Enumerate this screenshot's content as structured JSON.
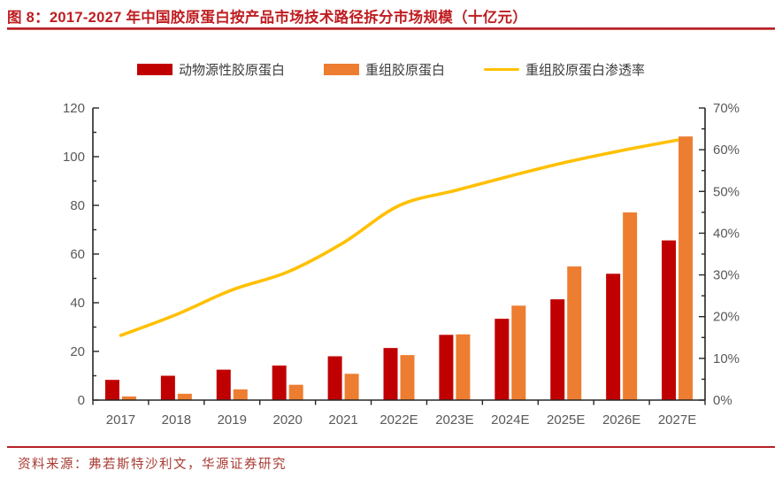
{
  "header": {
    "title": "图 8：2017-2027 年中国胶原蛋白按产品市场技术路径拆分市场规模（十亿元）"
  },
  "footer": {
    "source": "资料来源：弗若斯特沙利文，华源证券研究"
  },
  "colors": {
    "title_red": "#bf1d21",
    "animal_bar": "#c00000",
    "recombinant_bar": "#ed7d31",
    "penetration_line": "#ffc000",
    "axis_label_gray": "#595959",
    "axis_line": "#262626",
    "source_text": "#a83a32"
  },
  "chart_data": {
    "type": "bar",
    "subtype": "grouped-bars-with-line",
    "title": "2017-2027 年中国胶原蛋白按产品市场技术路径拆分市场规模（十亿元）",
    "categories": [
      "2017",
      "2018",
      "2019",
      "2020",
      "2021",
      "2022E",
      "2023E",
      "2024E",
      "2025E",
      "2026E",
      "2027E"
    ],
    "series": [
      {
        "name": "动物源性胶原蛋白",
        "type": "bar",
        "axis": "left",
        "color": "#c00000",
        "values": [
          8.3,
          10.0,
          12.5,
          14.2,
          18.0,
          21.4,
          26.8,
          33.4,
          41.4,
          51.9,
          65.6
        ]
      },
      {
        "name": "重组胶原蛋白",
        "type": "bar",
        "axis": "left",
        "color": "#ed7d31",
        "values": [
          1.5,
          2.6,
          4.4,
          6.3,
          10.8,
          18.5,
          27.0,
          38.8,
          54.9,
          77.1,
          108.3
        ]
      },
      {
        "name": "重组胶原蛋白渗透率",
        "type": "line",
        "axis": "right",
        "color": "#ffc000",
        "values": [
          15.5,
          20.5,
          26.4,
          30.7,
          37.7,
          46.6,
          50.2,
          53.7,
          57.0,
          59.8,
          62.3
        ],
        "unit": "%"
      }
    ],
    "left_axis": {
      "min": 0,
      "max": 120,
      "major_step": 20,
      "minor_step": 10,
      "ticks": [
        "0",
        "20",
        "40",
        "60",
        "80",
        "100",
        "120"
      ]
    },
    "right_axis": {
      "min": 0,
      "max": 70,
      "major_step": 10,
      "minor_step": 5,
      "unit": "%",
      "ticks": [
        "0%",
        "10%",
        "20%",
        "30%",
        "40%",
        "50%",
        "60%",
        "70%"
      ]
    },
    "grid": false,
    "legend_position": "top",
    "xlabel": "",
    "ylabel": "十亿元"
  }
}
